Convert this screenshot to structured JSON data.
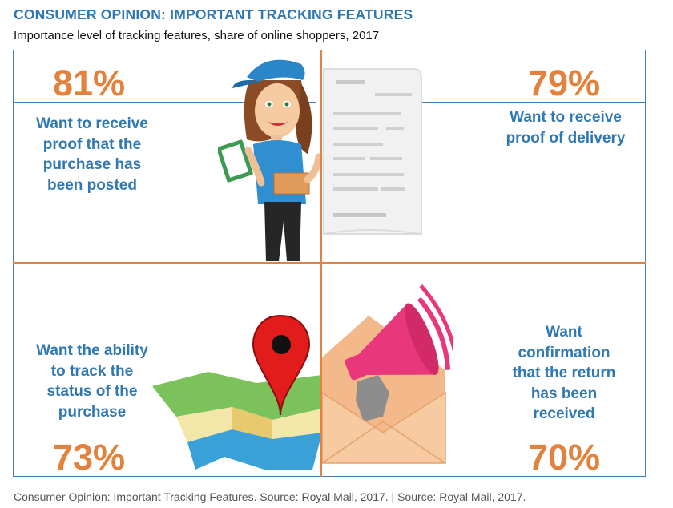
{
  "header": {
    "title": "CONSUMER OPINION: IMPORTANT TRACKING FEATURES",
    "subtitle": "Importance level of tracking features, share of online shoppers, 2017"
  },
  "quadrants": [
    {
      "percent": "81%",
      "lines": [
        "Want to receive",
        "proof that the",
        "purchase has",
        "been posted"
      ]
    },
    {
      "percent": "79%",
      "lines": [
        "Want to receive",
        "proof of delivery"
      ]
    },
    {
      "percent": "73%",
      "lines": [
        "Want the ability",
        "to track the",
        "status of the",
        "purchase"
      ]
    },
    {
      "percent": "70%",
      "lines": [
        "Want",
        "confirmation",
        "that the return",
        "has been",
        "received"
      ]
    }
  ],
  "footer": {
    "source": "Consumer Opinion: Important Tracking Features. Source: Royal Mail, 2017. | Source: Royal Mail, 2017."
  },
  "colors": {
    "title_blue": "#2f78b4",
    "accent_orange": "#e3823d",
    "frame_blue": "#3f7fb3",
    "pin_red": "#e02020",
    "megaphone_pink": "#e8377a"
  }
}
